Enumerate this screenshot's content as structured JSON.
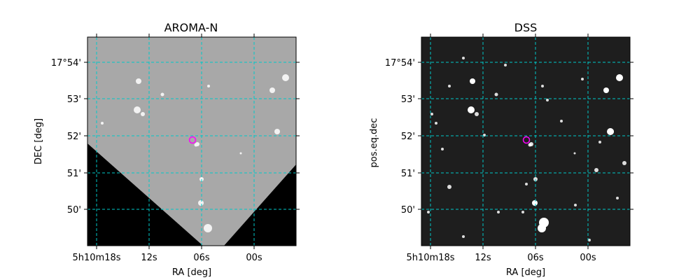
{
  "panels": [
    {
      "id": "aroma",
      "title": "AROMA-N",
      "xlabel": "RA [deg]",
      "ylabel": "DEC [deg]",
      "xticks": [
        "5h10m18s",
        "12s",
        "06s",
        "00s"
      ],
      "yticks": [
        "17°54'",
        "53'",
        "52'",
        "51'",
        "50'"
      ],
      "background": "#a8a8a8",
      "mask": "#000000"
    },
    {
      "id": "dss",
      "title": "DSS",
      "xlabel": "RA [deg]",
      "ylabel": "pos.eq.dec",
      "xticks": [
        "5h10m18s",
        "12s",
        "06s",
        "00s"
      ],
      "yticks": [
        "17°54'",
        "53'",
        "52'",
        "51'",
        "50'"
      ],
      "background": "#1e1e1e",
      "mask": ""
    }
  ],
  "colors": {
    "grid": "#00c8c8",
    "marker": "#ff00ff"
  },
  "marker": {
    "shape": "circle",
    "color": "#ff00ff"
  }
}
